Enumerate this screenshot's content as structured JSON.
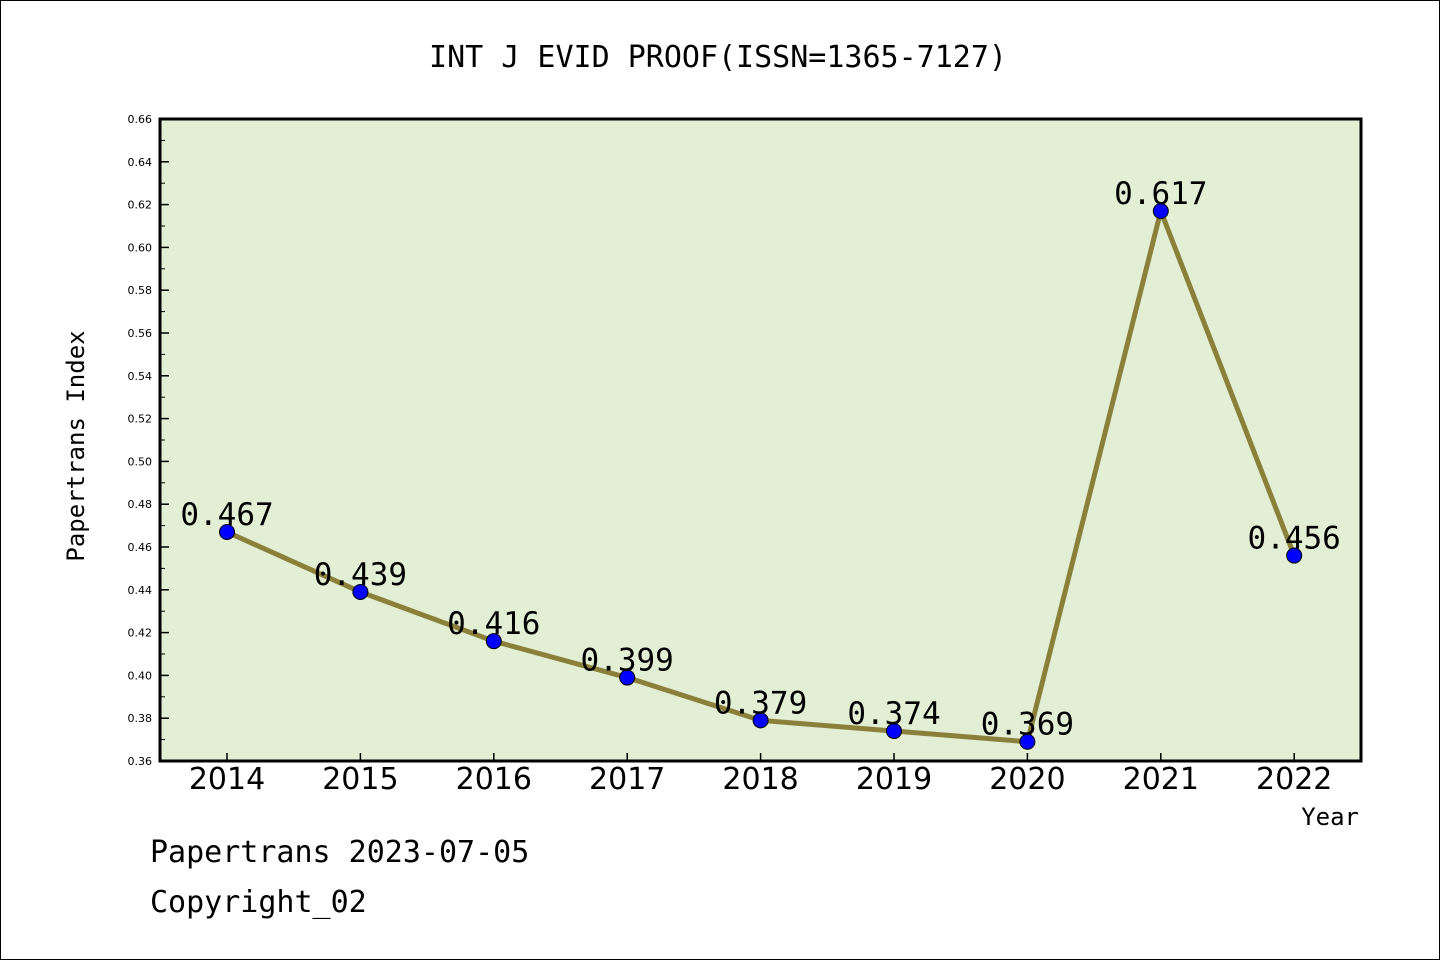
{
  "chart_data": {
    "type": "line",
    "title": "INT J EVID PROOF(ISSN=1365-7127)",
    "xlabel": "Year",
    "ylabel": "Papertrans Index",
    "categories": [
      "2014",
      "2015",
      "2016",
      "2017",
      "2018",
      "2019",
      "2020",
      "2021",
      "2022"
    ],
    "values": [
      0.467,
      0.439,
      0.416,
      0.399,
      0.379,
      0.374,
      0.369,
      0.617,
      0.456
    ],
    "data_labels": [
      "0.467",
      "0.439",
      "0.416",
      "0.399",
      "0.379",
      "0.374",
      "0.369",
      "0.617",
      "0.456"
    ],
    "ylim": [
      0.36,
      0.66
    ],
    "yticks": [
      "0.36",
      "0.38",
      "0.40",
      "0.42",
      "0.44",
      "0.46",
      "0.48",
      "0.50",
      "0.52",
      "0.54",
      "0.56",
      "0.58",
      "0.60",
      "0.62",
      "0.64",
      "0.66"
    ],
    "grid": false,
    "legend": "none",
    "colors": {
      "plot_background": "#e2efd5",
      "line": "#8b803a",
      "marker": "#0000ff"
    }
  },
  "footer": {
    "source": "Papertrans 2023-07-05",
    "copyright": "Copyright_02"
  }
}
